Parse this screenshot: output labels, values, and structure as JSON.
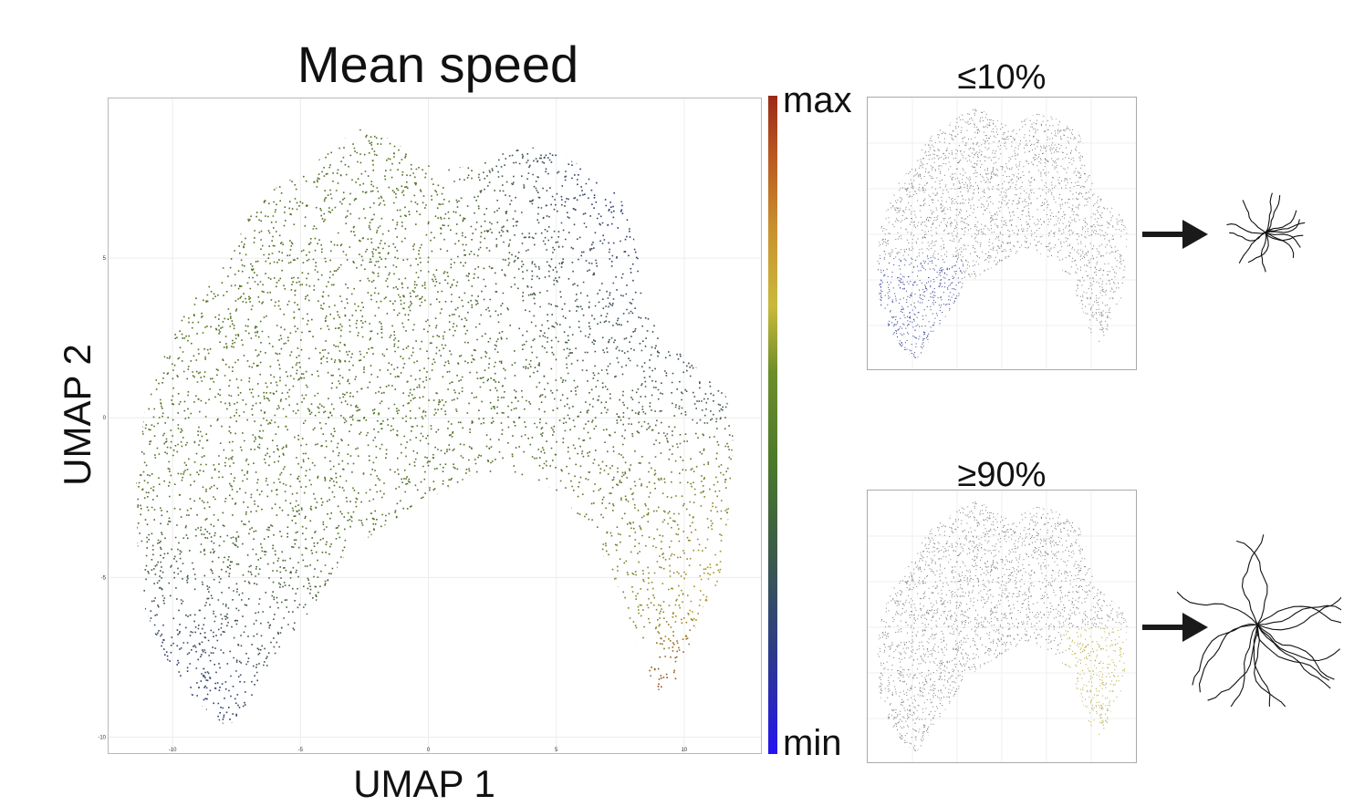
{
  "main_title": "Mean speed",
  "colorbar": {
    "max_label": "max",
    "min_label": "min"
  },
  "panels": {
    "low_title": "≤10%",
    "high_title": "≥90%"
  },
  "chart_data": [
    {
      "type": "scatter",
      "title": "Mean speed",
      "xlabel": "UMAP 1",
      "ylabel": "UMAP 2",
      "xlim": [
        -12.5,
        13
      ],
      "ylim": [
        -10.5,
        10
      ],
      "xticks": [
        -10,
        -5,
        0,
        5,
        10
      ],
      "yticks": [
        -10,
        -5,
        0,
        5
      ],
      "grid": true,
      "color_scale": {
        "min_label": "min",
        "max_label": "max",
        "colors": [
          "#2414f0",
          "#4d7a2a",
          "#c9b93c",
          "#9a2a18"
        ]
      }
    },
    {
      "type": "scatter",
      "title": "≤10%",
      "highlight": "lowest mean speed region (lower-left lobe)",
      "highlight_color": "#2c3a8a"
    },
    {
      "type": "scatter",
      "title": "≥90%",
      "highlight": "highest mean speed region (right arm)",
      "highlight_color": "#b0a234"
    }
  ]
}
